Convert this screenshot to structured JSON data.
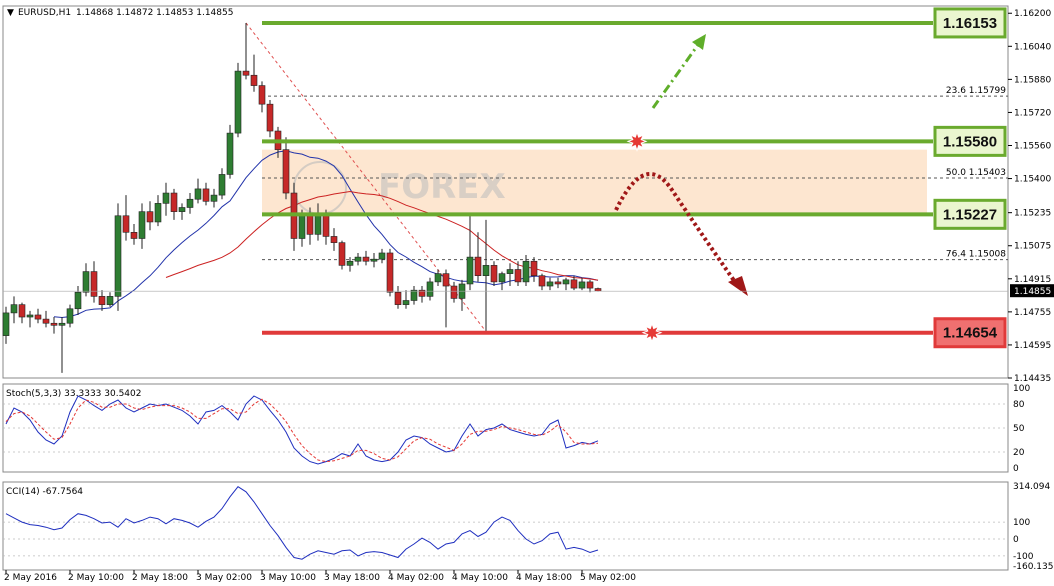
{
  "header": {
    "symbol": "EURUSD,H1",
    "ohlc": "1.14868 1.14872 1.14853 1.14855"
  },
  "colors": {
    "bull": "#2e7d32",
    "bear": "#c62828",
    "resistance": "#6aaa2e",
    "support": "#e03a3a",
    "sma_fast": "#2233aa",
    "sma_slow": "#cc2222",
    "zone": "#fde6d0",
    "fib": "#555555"
  },
  "chart_data": [
    {
      "type": "candlestick",
      "ylim": [
        1.14435,
        1.16235
      ],
      "y_ticks": [
        "1.16200",
        "1.16040",
        "1.15880",
        "1.15720",
        "1.15560",
        "1.15400",
        "1.15235",
        "1.15075",
        "1.14915",
        "1.14755",
        "1.14595",
        "1.14435"
      ],
      "x_ticks": [
        "2 May 2016",
        "2 May 10:00",
        "2 May 18:00",
        "3 May 02:00",
        "3 May 10:00",
        "3 May 18:00",
        "4 May 02:00",
        "4 May 10:00",
        "4 May 18:00",
        "5 May 02:00"
      ],
      "x_tick_index": [
        0,
        8,
        16,
        24,
        32,
        40,
        48,
        56,
        64,
        72
      ],
      "current_price": "1.14855",
      "candles": [
        [
          1.1464,
          1.1478,
          1.146,
          1.1475
        ],
        [
          1.1475,
          1.1483,
          1.147,
          1.1479
        ],
        [
          1.1479,
          1.148,
          1.147,
          1.1473
        ],
        [
          1.1473,
          1.1476,
          1.1468,
          1.1474
        ],
        [
          1.1474,
          1.1477,
          1.147,
          1.1472
        ],
        [
          1.1472,
          1.1476,
          1.1468,
          1.147
        ],
        [
          1.147,
          1.1473,
          1.1465,
          1.1469
        ],
        [
          1.1469,
          1.1473,
          1.1446,
          1.147
        ],
        [
          1.147,
          1.1479,
          1.1468,
          1.1477
        ],
        [
          1.1477,
          1.1488,
          1.1474,
          1.1485
        ],
        [
          1.1485,
          1.1499,
          1.1483,
          1.1495
        ],
        [
          1.1495,
          1.15,
          1.148,
          1.1483
        ],
        [
          1.1483,
          1.1486,
          1.1476,
          1.1479
        ],
        [
          1.1479,
          1.1485,
          1.1478,
          1.1483
        ],
        [
          1.1483,
          1.1528,
          1.1476,
          1.1522
        ],
        [
          1.1522,
          1.1532,
          1.151,
          1.1514
        ],
        [
          1.1514,
          1.1518,
          1.1508,
          1.1511
        ],
        [
          1.1511,
          1.1528,
          1.1506,
          1.1524
        ],
        [
          1.1524,
          1.1529,
          1.1515,
          1.1519
        ],
        [
          1.1519,
          1.1532,
          1.1517,
          1.1528
        ],
        [
          1.1528,
          1.1538,
          1.1522,
          1.1533
        ],
        [
          1.1533,
          1.1535,
          1.152,
          1.1524
        ],
        [
          1.1524,
          1.1528,
          1.152,
          1.1526
        ],
        [
          1.1526,
          1.1533,
          1.1523,
          1.153
        ],
        [
          1.153,
          1.154,
          1.1528,
          1.1535
        ],
        [
          1.1535,
          1.1538,
          1.1527,
          1.1529
        ],
        [
          1.1529,
          1.1535,
          1.1526,
          1.1532
        ],
        [
          1.1532,
          1.1545,
          1.153,
          1.1542
        ],
        [
          1.1542,
          1.1566,
          1.154,
          1.1562
        ],
        [
          1.1562,
          1.1596,
          1.156,
          1.1592
        ],
        [
          1.1592,
          1.16153,
          1.1588,
          1.159
        ],
        [
          1.159,
          1.16,
          1.1582,
          1.1585
        ],
        [
          1.1585,
          1.1587,
          1.1572,
          1.1576
        ],
        [
          1.1576,
          1.1578,
          1.156,
          1.1563
        ],
        [
          1.1563,
          1.1565,
          1.155,
          1.1554
        ],
        [
          1.1554,
          1.156,
          1.153,
          1.1533
        ],
        [
          1.1533,
          1.1538,
          1.1505,
          1.1511
        ],
        [
          1.1511,
          1.1525,
          1.1507,
          1.1522
        ],
        [
          1.1522,
          1.1526,
          1.1508,
          1.1513
        ],
        [
          1.1513,
          1.1528,
          1.151,
          1.1523
        ],
        [
          1.1523,
          1.1525,
          1.1508,
          1.1512
        ],
        [
          1.1512,
          1.1516,
          1.1505,
          1.1509
        ],
        [
          1.1509,
          1.151,
          1.1496,
          1.1498
        ],
        [
          1.1498,
          1.1502,
          1.1495,
          1.15
        ],
        [
          1.15,
          1.1504,
          1.1498,
          1.1502
        ],
        [
          1.1502,
          1.1505,
          1.1498,
          1.15
        ],
        [
          1.15,
          1.1504,
          1.1497,
          1.1501
        ],
        [
          1.1501,
          1.1506,
          1.1499,
          1.1504
        ],
        [
          1.1504,
          1.1506,
          1.1483,
          1.1485
        ],
        [
          1.1485,
          1.1488,
          1.1477,
          1.1479
        ],
        [
          1.1479,
          1.1486,
          1.1477,
          1.1481
        ],
        [
          1.1481,
          1.1488,
          1.1479,
          1.1486
        ],
        [
          1.1486,
          1.1488,
          1.148,
          1.1483
        ],
        [
          1.1483,
          1.1492,
          1.1481,
          1.149
        ],
        [
          1.149,
          1.1496,
          1.1488,
          1.1494
        ],
        [
          1.1494,
          1.1496,
          1.1468,
          1.1488
        ],
        [
          1.1488,
          1.149,
          1.148,
          1.1482
        ],
        [
          1.1482,
          1.1491,
          1.1476,
          1.1489
        ],
        [
          1.1489,
          1.1523,
          1.1486,
          1.1502
        ],
        [
          1.1502,
          1.1514,
          1.149,
          1.1493
        ],
        [
          1.1493,
          1.152,
          1.1466,
          1.1498
        ],
        [
          1.1498,
          1.15,
          1.1488,
          1.149
        ],
        [
          1.149,
          1.1495,
          1.1486,
          1.1494
        ],
        [
          1.1494,
          1.1499,
          1.1488,
          1.1496
        ],
        [
          1.1496,
          1.15,
          1.1488,
          1.149
        ],
        [
          1.149,
          1.1503,
          1.1488,
          1.15
        ],
        [
          1.15,
          1.1502,
          1.149,
          1.1493
        ],
        [
          1.1493,
          1.1494,
          1.1486,
          1.1488
        ],
        [
          1.1488,
          1.1492,
          1.1486,
          1.149
        ],
        [
          1.149,
          1.1492,
          1.1487,
          1.1489
        ],
        [
          1.1489,
          1.1492,
          1.1486,
          1.1491
        ],
        [
          1.1491,
          1.1493,
          1.1486,
          1.1487
        ],
        [
          1.1487,
          1.1492,
          1.1486,
          1.149
        ],
        [
          1.149,
          1.1491,
          1.1485,
          1.1487
        ],
        [
          1.14868,
          1.14872,
          1.14853,
          1.14855
        ]
      ],
      "levels": [
        {
          "value": 1.16153,
          "label": "1.16153",
          "role": "resistance"
        },
        {
          "value": 1.1558,
          "label": "1.15580",
          "role": "resistance"
        },
        {
          "value": 1.15227,
          "label": "1.15227",
          "role": "resistance"
        },
        {
          "value": 1.14654,
          "label": "1.14654",
          "role": "support"
        }
      ],
      "fibonacci": [
        {
          "value": 1.15799,
          "label": "23.6   1.15799"
        },
        {
          "value": 1.15403,
          "label": "50.0   1.15403"
        },
        {
          "value": 1.15008,
          "label": "76.4   1.15008"
        }
      ],
      "zone": [
        1.15227,
        1.1554
      ]
    },
    {
      "type": "line",
      "title": "Stoch(5,3,3) 33.3333 30.5402",
      "ylim": [
        0,
        100
      ],
      "y_ticks": [
        "100",
        "80",
        "50",
        "20",
        "0"
      ],
      "series": [
        {
          "values": [
            55,
            75,
            70,
            60,
            45,
            35,
            30,
            40,
            70,
            90,
            85,
            78,
            72,
            80,
            85,
            75,
            70,
            75,
            80,
            78,
            80,
            76,
            72,
            65,
            55,
            70,
            72,
            78,
            70,
            60,
            80,
            90,
            85,
            72,
            60,
            45,
            25,
            15,
            8,
            5,
            8,
            12,
            18,
            15,
            30,
            15,
            10,
            8,
            10,
            20,
            35,
            40,
            38,
            30,
            25,
            20,
            22,
            40,
            55,
            40,
            48,
            50,
            55,
            48,
            45,
            42,
            40,
            42,
            55,
            60,
            25,
            28,
            32,
            30,
            34
          ]
        },
        {
          "values": [
            58,
            68,
            70,
            65,
            55,
            45,
            36,
            38,
            55,
            75,
            85,
            82,
            76,
            76,
            80,
            80,
            75,
            73,
            76,
            78,
            78,
            78,
            75,
            70,
            62,
            62,
            68,
            74,
            74,
            68,
            70,
            80,
            86,
            80,
            70,
            58,
            42,
            28,
            18,
            10,
            8,
            9,
            12,
            15,
            22,
            22,
            18,
            12,
            10,
            14,
            24,
            34,
            38,
            36,
            30,
            26,
            22,
            30,
            42,
            46,
            46,
            48,
            52,
            50,
            48,
            45,
            42,
            41,
            46,
            54,
            45,
            32,
            30,
            30,
            31
          ]
        }
      ]
    },
    {
      "type": "line",
      "title": "CCI(14) -67.7564",
      "ylim": [
        -160.1355,
        314.094
      ],
      "y_ticks": [
        "314.094",
        "100",
        "0",
        "-100",
        "-160.1355"
      ],
      "series": [
        {
          "values": [
            150,
            125,
            100,
            85,
            80,
            70,
            55,
            65,
            115,
            150,
            140,
            120,
            95,
            100,
            70,
            120,
            95,
            110,
            130,
            120,
            90,
            120,
            110,
            95,
            70,
            105,
            130,
            180,
            250,
            310,
            280,
            220,
            150,
            80,
            20,
            -50,
            -110,
            -120,
            -90,
            -70,
            -80,
            -90,
            -70,
            -65,
            -100,
            -80,
            -75,
            -80,
            -95,
            -110,
            -60,
            -30,
            5,
            -20,
            -60,
            -30,
            -20,
            30,
            50,
            15,
            40,
            100,
            130,
            110,
            50,
            0,
            -30,
            -10,
            30,
            40,
            -60,
            -50,
            -60,
            -80,
            -65
          ]
        }
      ]
    }
  ],
  "watermark": "FOREX"
}
